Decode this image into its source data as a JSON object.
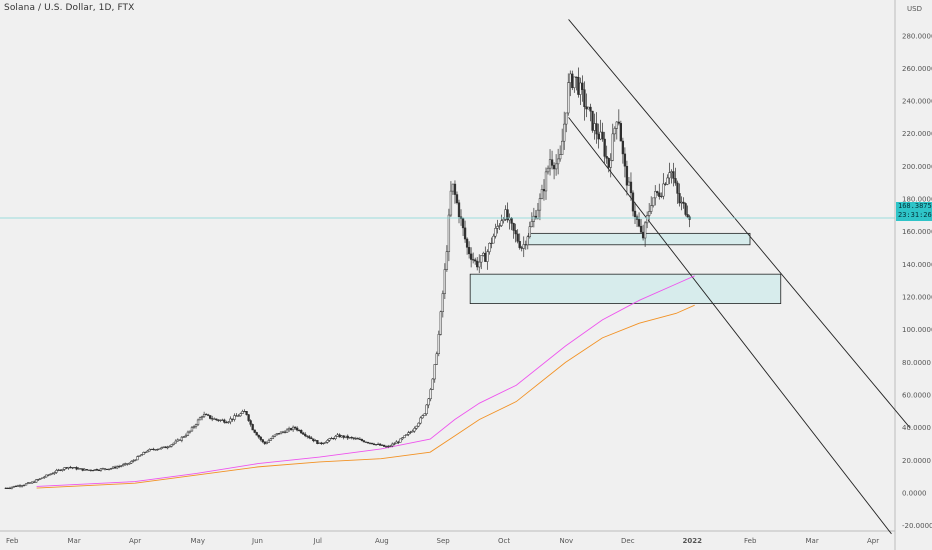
{
  "title": "Solana / U.S. Dollar, 1D, FTX",
  "currency": "USD",
  "last_price": "168.3875",
  "countdown": "23:31:26",
  "colors": {
    "background": "#f0f0f0",
    "up_candle": "#2e2e2e",
    "down_candle": "#2e2e2e",
    "ma_fast": "#ee55ee",
    "ma_slow": "#f29225",
    "zone_fill": "#d7ecec",
    "last_price_line": "#7fd6d6",
    "price_label_bg": "#2ec4c8"
  },
  "chart_data": {
    "type": "candlestick",
    "y_axis": {
      "ticks": [
        "280.0000",
        "260.0000",
        "240.0000",
        "220.0000",
        "200.0000",
        "180.0000",
        "160.0000",
        "140.0000",
        "120.0000",
        "100.0000",
        "80.0000",
        "60.0000",
        "40.0000",
        "20.0000",
        "0.0000",
        "-20.0000"
      ],
      "tick_values": [
        280,
        260,
        240,
        220,
        200,
        180,
        160,
        140,
        120,
        100,
        80,
        60,
        40,
        20,
        0,
        -20
      ],
      "ylim": [
        -22,
        290
      ]
    },
    "x_axis": {
      "labels": [
        "Feb",
        "Mar",
        "Apr",
        "May",
        "Jun",
        "Jul",
        "Aug",
        "Sep",
        "Oct",
        "Nov",
        "Dec",
        "2022",
        "Feb",
        "Mar",
        "Apr"
      ],
      "month_index": [
        0,
        1,
        2,
        3,
        4,
        5,
        6,
        7,
        8,
        9,
        10,
        11,
        12,
        13,
        14
      ]
    },
    "price_path": [
      {
        "m": -0.1,
        "v": 3
      },
      {
        "m": 0.3,
        "v": 6
      },
      {
        "m": 0.7,
        "v": 13
      },
      {
        "m": 0.9,
        "v": 16
      },
      {
        "m": 1.2,
        "v": 14
      },
      {
        "m": 1.6,
        "v": 15
      },
      {
        "m": 1.9,
        "v": 18
      },
      {
        "m": 2.2,
        "v": 26
      },
      {
        "m": 2.5,
        "v": 28
      },
      {
        "m": 2.7,
        "v": 32
      },
      {
        "m": 2.9,
        "v": 38
      },
      {
        "m": 3.1,
        "v": 48
      },
      {
        "m": 3.3,
        "v": 45
      },
      {
        "m": 3.5,
        "v": 44
      },
      {
        "m": 3.8,
        "v": 50
      },
      {
        "m": 3.9,
        "v": 40
      },
      {
        "m": 4.1,
        "v": 30
      },
      {
        "m": 4.3,
        "v": 36
      },
      {
        "m": 4.6,
        "v": 40
      },
      {
        "m": 4.8,
        "v": 35
      },
      {
        "m": 5.0,
        "v": 30
      },
      {
        "m": 5.3,
        "v": 35
      },
      {
        "m": 5.6,
        "v": 33
      },
      {
        "m": 5.9,
        "v": 30
      },
      {
        "m": 6.1,
        "v": 28
      },
      {
        "m": 6.3,
        "v": 32
      },
      {
        "m": 6.5,
        "v": 38
      },
      {
        "m": 6.7,
        "v": 48
      },
      {
        "m": 6.85,
        "v": 70
      },
      {
        "m": 6.95,
        "v": 100
      },
      {
        "m": 7.05,
        "v": 140
      },
      {
        "m": 7.15,
        "v": 190
      },
      {
        "m": 7.25,
        "v": 175
      },
      {
        "m": 7.4,
        "v": 150
      },
      {
        "m": 7.55,
        "v": 140
      },
      {
        "m": 7.7,
        "v": 145
      },
      {
        "m": 7.8,
        "v": 155
      },
      {
        "m": 8.0,
        "v": 172
      },
      {
        "m": 8.15,
        "v": 160
      },
      {
        "m": 8.3,
        "v": 150
      },
      {
        "m": 8.45,
        "v": 165
      },
      {
        "m": 8.6,
        "v": 180
      },
      {
        "m": 8.75,
        "v": 205
      },
      {
        "m": 8.9,
        "v": 200
      },
      {
        "m": 9.05,
        "v": 250
      },
      {
        "m": 9.15,
        "v": 255
      },
      {
        "m": 9.3,
        "v": 240
      },
      {
        "m": 9.45,
        "v": 225
      },
      {
        "m": 9.6,
        "v": 215
      },
      {
        "m": 9.7,
        "v": 200
      },
      {
        "m": 9.85,
        "v": 235
      },
      {
        "m": 9.95,
        "v": 200
      },
      {
        "m": 10.1,
        "v": 175
      },
      {
        "m": 10.25,
        "v": 155
      },
      {
        "m": 10.4,
        "v": 180
      },
      {
        "m": 10.55,
        "v": 185
      },
      {
        "m": 10.7,
        "v": 200
      },
      {
        "m": 10.85,
        "v": 178
      },
      {
        "m": 11.0,
        "v": 172
      },
      {
        "m": 11.05,
        "v": 168
      }
    ],
    "ma_fast": [
      {
        "m": 0.4,
        "v": 4
      },
      {
        "m": 2,
        "v": 7
      },
      {
        "m": 3,
        "v": 12
      },
      {
        "m": 4,
        "v": 18
      },
      {
        "m": 5,
        "v": 22
      },
      {
        "m": 6,
        "v": 27
      },
      {
        "m": 6.8,
        "v": 33
      },
      {
        "m": 7.2,
        "v": 45
      },
      {
        "m": 7.6,
        "v": 55
      },
      {
        "m": 8.2,
        "v": 66
      },
      {
        "m": 9,
        "v": 90
      },
      {
        "m": 9.6,
        "v": 106
      },
      {
        "m": 10.2,
        "v": 118
      },
      {
        "m": 10.8,
        "v": 128
      },
      {
        "m": 11.1,
        "v": 133
      }
    ],
    "ma_slow": [
      {
        "m": 0.4,
        "v": 3
      },
      {
        "m": 2,
        "v": 6
      },
      {
        "m": 3,
        "v": 11
      },
      {
        "m": 4,
        "v": 16
      },
      {
        "m": 5,
        "v": 19
      },
      {
        "m": 6,
        "v": 21
      },
      {
        "m": 6.8,
        "v": 25
      },
      {
        "m": 7.2,
        "v": 35
      },
      {
        "m": 7.6,
        "v": 45
      },
      {
        "m": 8.2,
        "v": 56
      },
      {
        "m": 9,
        "v": 80
      },
      {
        "m": 9.6,
        "v": 95
      },
      {
        "m": 10.2,
        "v": 104
      },
      {
        "m": 10.8,
        "v": 110
      },
      {
        "m": 11.1,
        "v": 115
      }
    ],
    "zones": [
      {
        "m0": 8.4,
        "m1": 12.0,
        "v0": 152,
        "v1": 159
      },
      {
        "m0": 7.45,
        "m1": 12.5,
        "v0": 116,
        "v1": 134
      }
    ],
    "trendlines": [
      {
        "m0": 9.05,
        "v0": 290,
        "m1": 14.6,
        "v1": 40
      },
      {
        "m0": 9.05,
        "v0": 230,
        "m1": 14.3,
        "v1": -25
      }
    ],
    "last_price_value": 168.3875
  }
}
